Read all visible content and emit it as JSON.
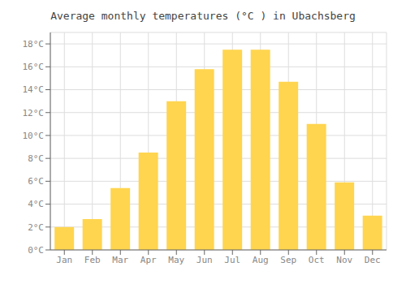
{
  "chart_data": {
    "type": "bar",
    "title": "Average monthly temperatures (°C ) in Ubachsberg",
    "categories": [
      "Jan",
      "Feb",
      "Mar",
      "Apr",
      "May",
      "Jun",
      "Jul",
      "Aug",
      "Sep",
      "Oct",
      "Nov",
      "Dec"
    ],
    "values": [
      2.0,
      2.7,
      5.4,
      8.5,
      13.0,
      15.8,
      17.5,
      17.5,
      14.7,
      11.0,
      5.9,
      3.0
    ],
    "color": "#FFD54F",
    "ylim": [
      0,
      19
    ],
    "yticks": [
      {
        "value": 0,
        "label": "0°C"
      },
      {
        "value": 2,
        "label": "2°C"
      },
      {
        "value": 4,
        "label": "4°C"
      },
      {
        "value": 6,
        "label": "6°C"
      },
      {
        "value": 8,
        "label": "8°C"
      },
      {
        "value": 10,
        "label": "10°C"
      },
      {
        "value": 12,
        "label": "12°C"
      },
      {
        "value": 14,
        "label": "14°C"
      },
      {
        "value": 16,
        "label": "16°C"
      },
      {
        "value": 18,
        "label": "18°C"
      }
    ],
    "grid": true
  }
}
